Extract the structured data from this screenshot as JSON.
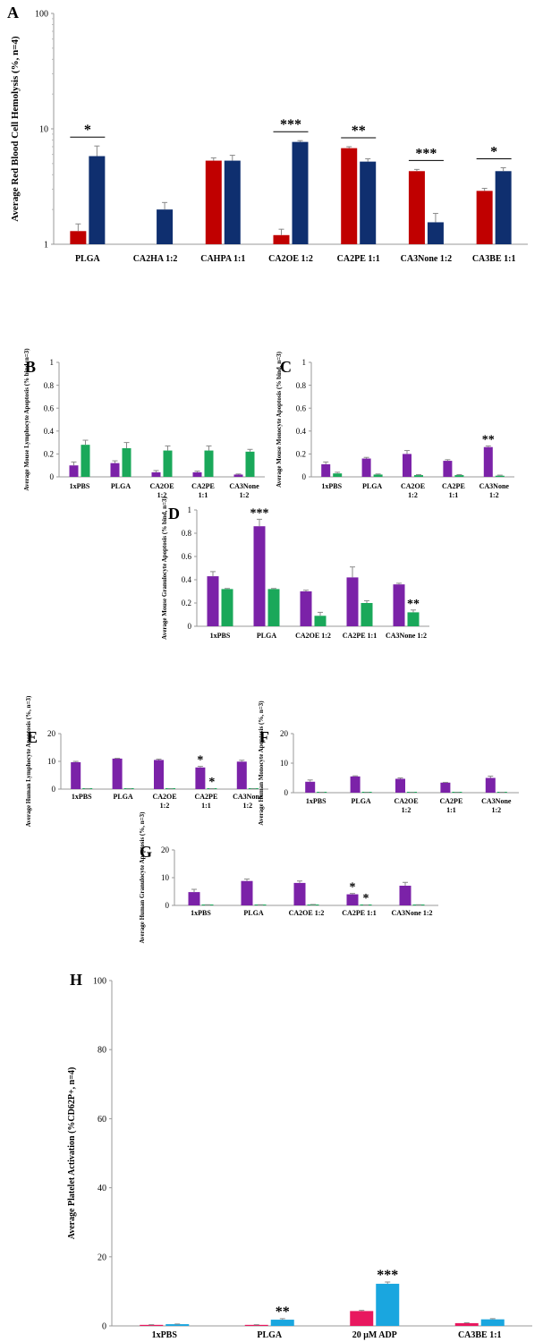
{
  "colors": {
    "red": "#c00000",
    "navy": "#0f2f6f",
    "purple": "#7b22a8",
    "green": "#1aa85a",
    "pink": "#e8185f",
    "cyan": "#1aa6df",
    "error": "#8a8a8a"
  },
  "chart_data": [
    {
      "panel": "A",
      "type": "bar",
      "scale": "log",
      "ylabel": "Average Red Blood Cell Hemolysis (%, n=4)",
      "ylim": [
        1,
        100
      ],
      "yticks": [
        1,
        10,
        100
      ],
      "categories": [
        "PLGA",
        "CA2HA 1:2",
        "CAHPA 1:1",
        "CA2OE 1:2",
        "CA2PE 1:1",
        "CA3None 1:2",
        "CA3BE 1:1"
      ],
      "series": [
        {
          "color": "red",
          "values": [
            1.3,
            null,
            5.3,
            1.2,
            6.8,
            4.3,
            2.9
          ],
          "errors": [
            0.2,
            null,
            0.3,
            0.15,
            0.2,
            0.15,
            0.15
          ]
        },
        {
          "color": "navy",
          "values": [
            5.8,
            2.0,
            5.3,
            7.7,
            5.2,
            1.55,
            4.3
          ],
          "errors": [
            1.3,
            0.3,
            0.6,
            0.2,
            0.3,
            0.3,
            0.3
          ]
        }
      ],
      "sig": [
        {
          "cat": 0,
          "label": "*",
          "bracket": true
        },
        {
          "cat": 3,
          "label": "***",
          "bracket": true
        },
        {
          "cat": 4,
          "label": "**",
          "bracket": true
        },
        {
          "cat": 5,
          "label": "***",
          "bracket": true
        },
        {
          "cat": 6,
          "label": "*",
          "bracket": true
        }
      ]
    },
    {
      "panel": "B",
      "type": "bar",
      "ylabel": "Average Mouse Lymphocyte Apoptosis (% bind, n=3)",
      "ylim": [
        0,
        1
      ],
      "yticks": [
        0,
        0.2,
        0.4,
        0.6,
        0.8,
        1
      ],
      "categories": [
        "1xPBS",
        "PLGA",
        "CA2OE 1:2",
        "CA2PE 1:1",
        "CA3None 1:2"
      ],
      "series": [
        {
          "color": "purple",
          "values": [
            0.1,
            0.12,
            0.04,
            0.04,
            0.02
          ],
          "errors": [
            0.03,
            0.02,
            0.015,
            0.01,
            0.005
          ]
        },
        {
          "color": "green",
          "values": [
            0.28,
            0.25,
            0.23,
            0.23,
            0.22
          ],
          "errors": [
            0.04,
            0.05,
            0.04,
            0.04,
            0.02
          ]
        }
      ],
      "sig": []
    },
    {
      "panel": "C",
      "type": "bar",
      "ylabel": "Average Mouse Monocyte Apoptosis (% bind, n=3)",
      "ylim": [
        0,
        1
      ],
      "yticks": [
        0,
        0.2,
        0.4,
        0.6,
        0.8,
        1
      ],
      "categories": [
        "1xPBS",
        "PLGA",
        "CA2OE 1:2",
        "CA2PE 1:1",
        "CA3None 1:2"
      ],
      "series": [
        {
          "color": "purple",
          "values": [
            0.11,
            0.16,
            0.2,
            0.14,
            0.26
          ],
          "errors": [
            0.02,
            0.01,
            0.03,
            0.01,
            0.01
          ]
        },
        {
          "color": "green",
          "values": [
            0.03,
            0.02,
            0.015,
            0.015,
            0.01
          ],
          "errors": [
            0.01,
            0.005,
            0.005,
            0.005,
            0.005
          ]
        }
      ],
      "sig": [
        {
          "cat": 4,
          "label": "**",
          "bracket": false,
          "series": 0
        }
      ]
    },
    {
      "panel": "D",
      "type": "bar",
      "ylabel": "Average Mouse Granulocyte Apoptosis (% bind, n=3)",
      "ylim": [
        0,
        1
      ],
      "yticks": [
        0,
        0.2,
        0.4,
        0.6,
        0.8,
        1
      ],
      "categories": [
        "1xPBS",
        "PLGA",
        "CA2OE 1:2",
        "CA2PE 1:1",
        "CA3None 1:2"
      ],
      "series": [
        {
          "color": "purple",
          "values": [
            0.43,
            0.86,
            0.3,
            0.42,
            0.36
          ],
          "errors": [
            0.04,
            0.06,
            0.01,
            0.09,
            0.01
          ]
        },
        {
          "color": "green",
          "values": [
            0.32,
            0.32,
            0.09,
            0.2,
            0.12
          ],
          "errors": [
            0.005,
            0.005,
            0.03,
            0.02,
            0.02
          ]
        }
      ],
      "sig": [
        {
          "cat": 1,
          "label": "***",
          "bracket": false,
          "series": 0
        },
        {
          "cat": 4,
          "label": "**",
          "bracket": false,
          "series": 1
        }
      ]
    },
    {
      "panel": "E",
      "type": "bar",
      "ylabel": "Average Human Lymphocyte Apoptosis (%, n=3)",
      "ylim": [
        0,
        20
      ],
      "yticks": [
        0,
        10,
        20
      ],
      "categories": [
        "1xPBS",
        "PLGA",
        "CA2OE 1:2",
        "CA2PE 1:1",
        "CA3None 1:2"
      ],
      "series": [
        {
          "color": "purple",
          "values": [
            9.7,
            11,
            10.5,
            7.8,
            9.9
          ],
          "errors": [
            0.3,
            0.1,
            0.3,
            0.4,
            0.5
          ]
        },
        {
          "color": "green",
          "values": [
            0.1,
            0.05,
            0.05,
            0.1,
            0.05
          ],
          "errors": [
            0.02,
            0.01,
            0.01,
            0.02,
            0.01
          ]
        }
      ],
      "sig": [
        {
          "cat": 3,
          "label": "*",
          "bracket": false,
          "series": 0
        },
        {
          "cat": 3,
          "label": "*",
          "bracket": false,
          "series": 1
        }
      ]
    },
    {
      "panel": "F",
      "type": "bar",
      "ylabel": "Average Human Monocyte Apoptosis (%, n=3)",
      "ylim": [
        0,
        20
      ],
      "yticks": [
        0,
        10,
        20
      ],
      "categories": [
        "1xPBS",
        "PLGA",
        "CA2OE 1:2",
        "CA2PE 1:1",
        "CA3None 1:2"
      ],
      "series": [
        {
          "color": "purple",
          "values": [
            3.7,
            5.5,
            4.7,
            3.4,
            5.0
          ],
          "errors": [
            0.6,
            0.2,
            0.3,
            0.1,
            0.6
          ]
        },
        {
          "color": "green",
          "values": [
            0.1,
            0.05,
            0.05,
            0.05,
            0.1
          ],
          "errors": [
            0.02,
            0.01,
            0.01,
            0.01,
            0.02
          ]
        }
      ],
      "sig": []
    },
    {
      "panel": "G",
      "type": "bar",
      "ylabel": "Average Human Granulocyte Apoptosis (%, n=3)",
      "ylim": [
        0,
        20
      ],
      "yticks": [
        0,
        10,
        20
      ],
      "categories": [
        "1xPBS",
        "PLGA",
        "CA2OE 1:2",
        "CA2PE 1:1",
        "CA3None 1:2"
      ],
      "series": [
        {
          "color": "purple",
          "values": [
            4.8,
            8.8,
            8.1,
            4.0,
            7.1
          ],
          "errors": [
            1.0,
            0.7,
            0.7,
            0.3,
            1.2
          ]
        },
        {
          "color": "green",
          "values": [
            0.2,
            0.2,
            0.3,
            0.15,
            0.2
          ],
          "errors": [
            0.03,
            0.03,
            0.03,
            0.02,
            0.03
          ]
        }
      ],
      "sig": [
        {
          "cat": 3,
          "label": "*",
          "bracket": false,
          "series": 0
        },
        {
          "cat": 3,
          "label": "*",
          "bracket": false,
          "series": 1
        }
      ]
    },
    {
      "panel": "H",
      "type": "bar",
      "ylabel": "Average Platelet Activation (%CD62P+, n=4)",
      "ylim": [
        0,
        100
      ],
      "yticks": [
        0,
        20,
        40,
        60,
        80,
        100
      ],
      "categories": [
        "1xPBS",
        "PLGA",
        "20 μM ADP",
        "CA3BE 1:1"
      ],
      "series": [
        {
          "color": "pink",
          "values": [
            0.3,
            0.3,
            4.3,
            0.8
          ],
          "errors": [
            0.05,
            0.05,
            0.2,
            0.1
          ]
        },
        {
          "color": "cyan",
          "values": [
            0.5,
            1.8,
            12.2,
            1.9
          ],
          "errors": [
            0.05,
            0.3,
            0.5,
            0.2
          ]
        }
      ],
      "sig": [
        {
          "cat": 1,
          "label": "**",
          "bracket": false,
          "series": 1
        },
        {
          "cat": 2,
          "label": "***",
          "bracket": false,
          "series": 1
        }
      ]
    }
  ]
}
